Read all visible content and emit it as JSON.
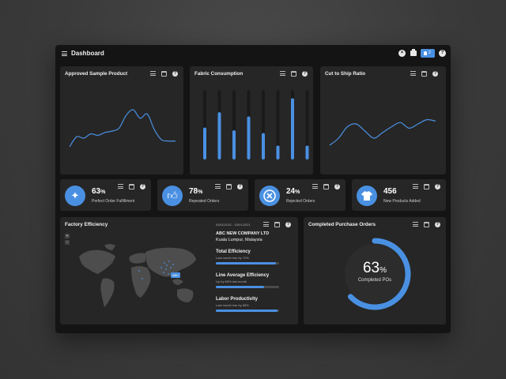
{
  "header": {
    "title": "Dashboard",
    "icons": [
      "menu-icon",
      "close-icon",
      "print-icon",
      "bell-icon",
      "help-icon"
    ],
    "notification_count": "2"
  },
  "colors": {
    "accent": "#4a90e2",
    "card": "#262626",
    "background": "#141414"
  },
  "charts": {
    "approved": {
      "title": "Approved Sample Product",
      "chart_data": {
        "type": "line",
        "series": [
          {
            "values": [
              18,
              32,
              30,
              36,
              34,
              38,
              40,
              44,
              62,
              70,
              58,
              64,
              42,
              28,
              26,
              26
            ]
          }
        ]
      }
    },
    "fabric": {
      "title": "Fabric Consumption",
      "chart_data": {
        "type": "bar",
        "series": [
          {
            "values": [
              46,
              68,
              42,
              62,
              38,
              20,
              88,
              20
            ]
          }
        ],
        "ylim": [
          0,
          100
        ]
      }
    },
    "cut_ship": {
      "title": "Cut to Ship Ratio",
      "chart_data": {
        "type": "line",
        "series": [
          {
            "values": [
              20,
              30,
              46,
              50,
              40,
              30,
              38,
              46,
              52,
              44,
              50,
              56,
              54
            ]
          }
        ]
      }
    }
  },
  "kpis": [
    {
      "icon": "sparkle-icon",
      "value": "63",
      "unit": "%",
      "label": "Perfect Order Fulfillment"
    },
    {
      "icon": "thumbs-up-icon",
      "value": "78",
      "unit": "%",
      "label": "Repeated Orders"
    },
    {
      "icon": "x-circle-icon",
      "value": "24",
      "unit": "%",
      "label": "Rejected Orders"
    },
    {
      "icon": "tshirt-icon",
      "value": "456",
      "unit": "",
      "label": "New Products Added"
    }
  ],
  "factory": {
    "title": "Factory Efficiency",
    "date_range": "03/01/2021 - 03/01/2021",
    "company": "ABC NEW COMPANY LTD",
    "location": "Kuala Lumpur, Malaysia",
    "map_marker": "ABC",
    "zoom_in": "+",
    "zoom_out": "−",
    "metrics": [
      {
        "name": "Total Efficiency",
        "sub": "Last month rise by 72%",
        "progress": 0.95
      },
      {
        "name": "Line Average Efficiency",
        "sub": "Up by 65% last month",
        "progress": 0.76
      },
      {
        "name": "Labor Productivity",
        "sub": "Last month rise by 85%",
        "progress": 0.97
      }
    ]
  },
  "completed": {
    "title": "Completed Purchase Orders",
    "value": "63",
    "unit": "%",
    "label": "Completed POs",
    "progress": 0.63
  }
}
